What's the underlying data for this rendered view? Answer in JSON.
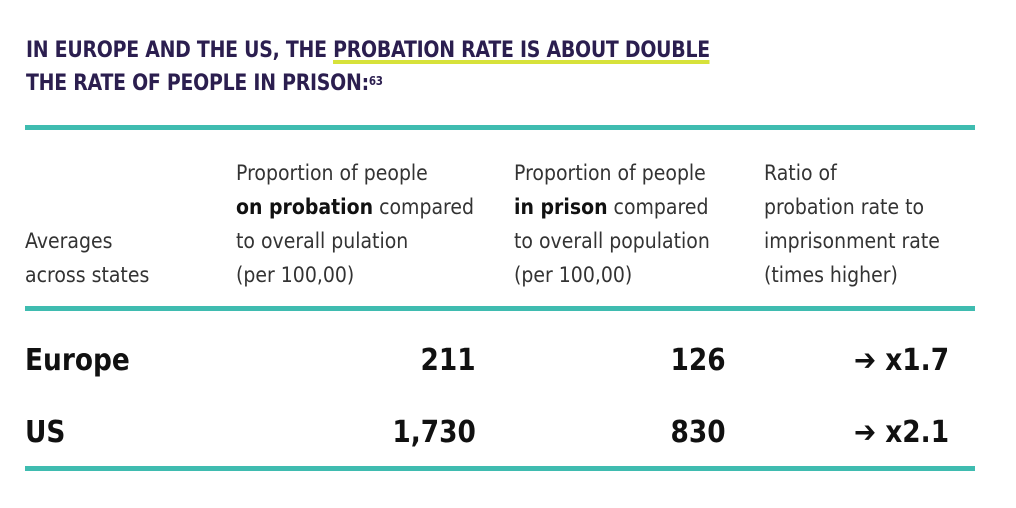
{
  "heading": {
    "line1_prefix": "IN EUROPE AND THE US, THE ",
    "line1_highlight": "PROBATION RATE IS ABOUT DOUBLE",
    "line2": "THE RATE OF PEOPLE IN PRISON:",
    "footnote": "63",
    "highlight_color": "#d7e23a",
    "text_color": "#2b1e4f"
  },
  "table": {
    "rule_color": "#3fbcb0",
    "headers": {
      "averages": [
        "Averages",
        "across states"
      ],
      "probation": {
        "line1": "Proportion of people",
        "line2_bold": "on probation",
        "line2_rest": " compared",
        "line3": "to overall pulation",
        "line4": "(per 100,00)"
      },
      "prison": {
        "line1": "Proportion of people",
        "line2_bold": "in prison",
        "line2_rest": " compared",
        "line3": "to overall population",
        "line4": "(per 100,00)"
      },
      "ratio": [
        "Ratio of",
        "probation rate to",
        "imprisonment rate",
        "(times higher)"
      ]
    },
    "rows": [
      {
        "label": "Europe",
        "probation": "211",
        "prison": "126",
        "ratio": "➔ x1.7"
      },
      {
        "label": "US",
        "probation": "1,730",
        "prison": "830",
        "ratio": "➔ x2.1"
      }
    ]
  }
}
